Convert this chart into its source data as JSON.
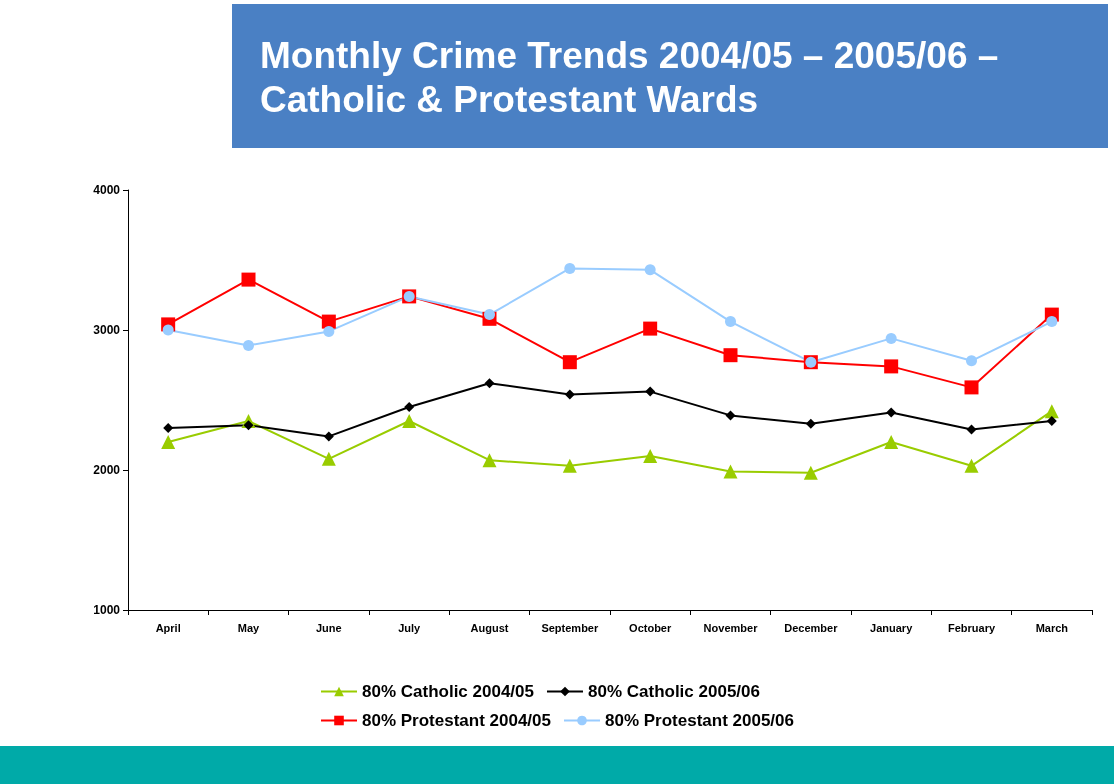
{
  "chart_data": {
    "type": "line",
    "title": "Monthly Crime Trends 2004/05 – 2005/06 – Catholic & Protestant Wards",
    "categories": [
      "April",
      "May",
      "June",
      "July",
      "August",
      "September",
      "October",
      "November",
      "December",
      "January",
      "February",
      "March"
    ],
    "ylim": [
      1000,
      4000
    ],
    "yticks": [
      1000,
      2000,
      3000,
      4000
    ],
    "grid": false,
    "legend": "bottom",
    "line_style": "solid",
    "series": [
      {
        "name": "80% Catholic 2004/05",
        "color": "#99cc00",
        "marker": "triangle",
        "values": [
          2200,
          2350,
          2080,
          2350,
          2070,
          2030,
          2100,
          1990,
          1980,
          2200,
          2030,
          2420
        ]
      },
      {
        "name": "80% Catholic 2005/06",
        "color": "#000000",
        "marker": "diamond",
        "values": [
          2300,
          2320,
          2240,
          2450,
          2620,
          2540,
          2560,
          2390,
          2330,
          2410,
          2290,
          2350
        ]
      },
      {
        "name": "80% Protestant 2004/05",
        "color": "#ff0000",
        "marker": "square",
        "values": [
          3040,
          3360,
          3060,
          3240,
          3080,
          2770,
          3010,
          2820,
          2770,
          2740,
          2590,
          3110
        ]
      },
      {
        "name": "80% Protestant 2005/06",
        "color": "#99ccff",
        "marker": "circle",
        "values": [
          3000,
          2890,
          2990,
          3240,
          3110,
          3440,
          3430,
          3060,
          2770,
          2940,
          2780,
          3060
        ]
      }
    ]
  }
}
